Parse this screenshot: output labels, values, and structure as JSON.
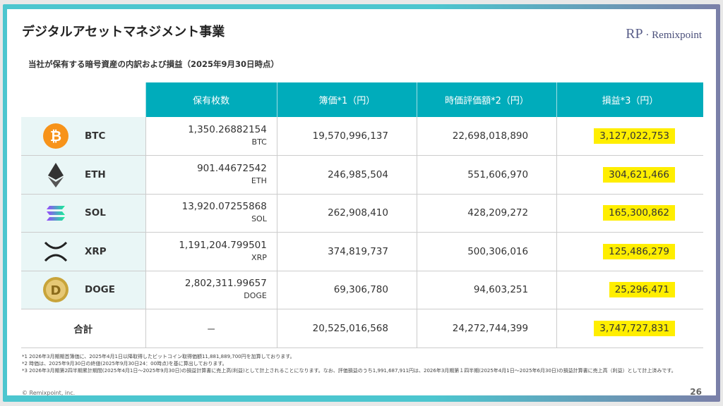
{
  "header": {
    "title": "デジタルアセットマネジメント事業",
    "logo": "Remixpoint",
    "logo_mark": "RP"
  },
  "subtitle": "当社が保有する暗号資産の内訳および損益（2025年9月30日時点）",
  "table": {
    "columns": [
      "保有枚数",
      "簿価*1（円）",
      "時価評価額*2（円）",
      "損益*3（円）"
    ],
    "rows": [
      {
        "asset": "BTC",
        "icon": "bitcoin-icon",
        "holdings": "1,350.26882154",
        "unit": "BTC",
        "book": "19,570,996,137",
        "market": "22,698,018,890",
        "pl": "3,127,022,753"
      },
      {
        "asset": "ETH",
        "icon": "ethereum-icon",
        "holdings": "901.44672542",
        "unit": "ETH",
        "book": "246,985,504",
        "market": "551,606,970",
        "pl": "304,621,466"
      },
      {
        "asset": "SOL",
        "icon": "solana-icon",
        "holdings": "13,920.07255868",
        "unit": "SOL",
        "book": "262,908,410",
        "market": "428,209,272",
        "pl": "165,300,862"
      },
      {
        "asset": "XRP",
        "icon": "xrp-icon",
        "holdings": "1,191,204.799501",
        "unit": "XRP",
        "book": "374,819,737",
        "market": "500,306,016",
        "pl": "125,486,279"
      },
      {
        "asset": "DOGE",
        "icon": "dogecoin-icon",
        "holdings": "2,802,311.99657",
        "unit": "DOGE",
        "book": "69,306,780",
        "market": "94,603,251",
        "pl": "25,296,471"
      }
    ],
    "total": {
      "label": "合計",
      "holdings": "－",
      "book": "20,525,016,568",
      "market": "24,272,744,399",
      "pl": "3,747,727,831"
    }
  },
  "notes": [
    "*1 2026年3月期期首簿価に、2025年4月1日以降取得したビットコイン取得価額11,881,889,700円を加算しております。",
    "*2 時価は、2025年9月30日の終値(2025年9月30日24：00時点)を基に算出しております。",
    "*3 2026年3月期第2四半期累計期間(2025年4月1日～2025年9月30日)の損益計算書に売上高(利益)として計上されることになります。なお、評価損益のうち1,991,687,911円は、2026年3月期第１四半期(2025年4月1日～2025年6月30日)の損益計算書に売上高（利益）として計上済みです。"
  ],
  "footer": {
    "copyright": "© Remixpoint, inc.",
    "page": "26"
  }
}
